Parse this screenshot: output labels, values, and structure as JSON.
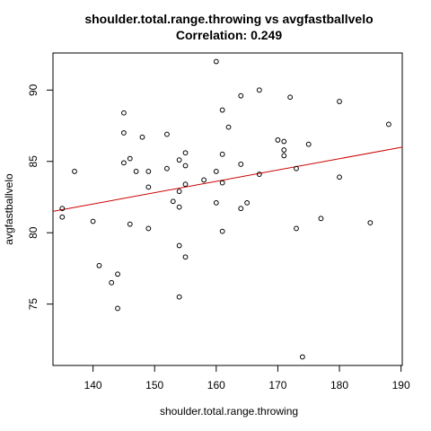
{
  "chart_data": {
    "type": "scatter",
    "title": "shoulder.total.range.throwing vs avgfastballvelo",
    "subtitle": "Correlation: 0.249",
    "xlabel": "shoulder.total.range.throwing",
    "ylabel": "avgfastballvelo",
    "xlim": [
      133.5,
      190.2
    ],
    "ylim": [
      70.7,
      92.6
    ],
    "x_ticks": [
      140,
      150,
      160,
      170,
      180,
      190
    ],
    "y_ticks": [
      75,
      80,
      85,
      90
    ],
    "grid": false,
    "legend": "none",
    "point_color": "#000000",
    "fit_line_color": "#cc0000",
    "fit_line": {
      "x1": 133.5,
      "y1": 81.5,
      "x2": 190.2,
      "y2": 86.0
    },
    "points": [
      {
        "x": 135,
        "y": 81.7
      },
      {
        "x": 135,
        "y": 81.1
      },
      {
        "x": 137,
        "y": 84.3
      },
      {
        "x": 140,
        "y": 80.8
      },
      {
        "x": 141,
        "y": 77.7
      },
      {
        "x": 143,
        "y": 76.5
      },
      {
        "x": 144,
        "y": 77.1
      },
      {
        "x": 144,
        "y": 74.7
      },
      {
        "x": 145,
        "y": 88.4
      },
      {
        "x": 145,
        "y": 87.0
      },
      {
        "x": 145,
        "y": 84.9
      },
      {
        "x": 146,
        "y": 85.2
      },
      {
        "x": 146,
        "y": 80.6
      },
      {
        "x": 147,
        "y": 84.3
      },
      {
        "x": 148,
        "y": 86.7
      },
      {
        "x": 149,
        "y": 84.3
      },
      {
        "x": 149,
        "y": 83.2
      },
      {
        "x": 149,
        "y": 80.3
      },
      {
        "x": 152,
        "y": 86.9
      },
      {
        "x": 152,
        "y": 84.5
      },
      {
        "x": 153,
        "y": 82.2
      },
      {
        "x": 154,
        "y": 85.1
      },
      {
        "x": 154,
        "y": 82.9
      },
      {
        "x": 154,
        "y": 81.8
      },
      {
        "x": 154,
        "y": 79.1
      },
      {
        "x": 154,
        "y": 75.5
      },
      {
        "x": 155,
        "y": 85.6
      },
      {
        "x": 155,
        "y": 84.7
      },
      {
        "x": 155,
        "y": 83.4
      },
      {
        "x": 155,
        "y": 78.3
      },
      {
        "x": 158,
        "y": 83.7
      },
      {
        "x": 160,
        "y": 92.0
      },
      {
        "x": 160,
        "y": 84.3
      },
      {
        "x": 160,
        "y": 82.1
      },
      {
        "x": 161,
        "y": 88.6
      },
      {
        "x": 161,
        "y": 85.5
      },
      {
        "x": 161,
        "y": 83.5
      },
      {
        "x": 161,
        "y": 80.1
      },
      {
        "x": 162,
        "y": 87.4
      },
      {
        "x": 164,
        "y": 89.6
      },
      {
        "x": 164,
        "y": 84.8
      },
      {
        "x": 164,
        "y": 81.7
      },
      {
        "x": 165,
        "y": 82.1
      },
      {
        "x": 167,
        "y": 90.0
      },
      {
        "x": 167,
        "y": 84.1
      },
      {
        "x": 170,
        "y": 86.5
      },
      {
        "x": 171,
        "y": 86.4
      },
      {
        "x": 171,
        "y": 85.8
      },
      {
        "x": 171,
        "y": 85.4
      },
      {
        "x": 172,
        "y": 89.5
      },
      {
        "x": 173,
        "y": 84.5
      },
      {
        "x": 173,
        "y": 80.3
      },
      {
        "x": 174,
        "y": 71.3
      },
      {
        "x": 175,
        "y": 86.2
      },
      {
        "x": 177,
        "y": 81.0
      },
      {
        "x": 180,
        "y": 89.2
      },
      {
        "x": 180,
        "y": 83.9
      },
      {
        "x": 185,
        "y": 80.7
      },
      {
        "x": 188,
        "y": 87.6
      }
    ]
  }
}
